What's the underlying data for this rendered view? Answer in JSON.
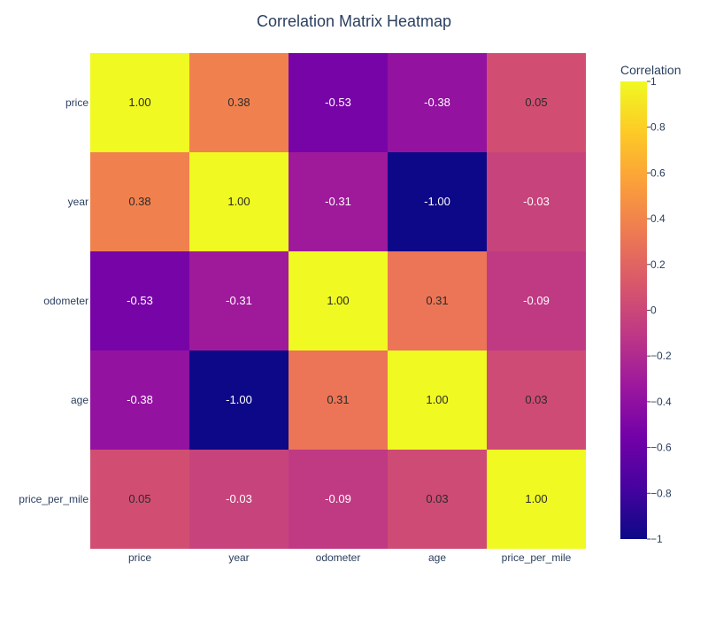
{
  "chart_data": {
    "type": "heatmap",
    "title": "Correlation Matrix Heatmap",
    "x_categories": [
      "price",
      "year",
      "odometer",
      "age",
      "price_per_mile"
    ],
    "y_categories": [
      "price",
      "year",
      "odometer",
      "age",
      "price_per_mile"
    ],
    "values": [
      [
        1.0,
        0.38,
        -0.53,
        -0.38,
        0.05
      ],
      [
        0.38,
        1.0,
        -0.31,
        -1.0,
        -0.03
      ],
      [
        -0.53,
        -0.31,
        1.0,
        0.31,
        -0.09
      ],
      [
        -0.38,
        -1.0,
        0.31,
        1.0,
        0.03
      ],
      [
        0.05,
        -0.03,
        -0.09,
        0.03,
        1.0
      ]
    ],
    "value_format": "0.00",
    "zlim": [
      -1,
      1
    ],
    "colorscale": "plasma",
    "colorbar": {
      "title": "Correlation",
      "ticks": [
        "−1",
        "−0.8",
        "−0.6",
        "−0.4",
        "−0.2",
        "0",
        "0.2",
        "0.4",
        "0.6",
        "0.8",
        "1"
      ]
    },
    "colors": {
      "title": "#2a3f5f",
      "axis_text": "#2a3f5f",
      "plasma": [
        "#0d0887",
        "#46039f",
        "#7201a8",
        "#9c179e",
        "#bd3786",
        "#d8576b",
        "#ed7953",
        "#fb9f3a",
        "#fdca26",
        "#f0f921"
      ]
    }
  }
}
